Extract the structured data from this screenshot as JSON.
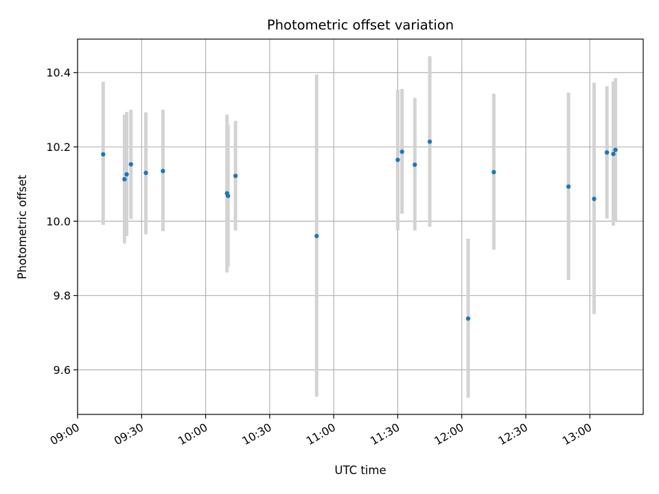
{
  "chart_data": {
    "type": "scatter",
    "title": "Photometric offset variation",
    "xlabel": "UTC time",
    "ylabel": "Photometric offset",
    "x_ticks": [
      "09:00",
      "09:30",
      "10:00",
      "10:30",
      "11:00",
      "11:30",
      "12:00",
      "12:30",
      "13:00"
    ],
    "y_ticks": [
      "9.6",
      "9.8",
      "10.0",
      "10.2",
      "10.4"
    ],
    "xlim": [
      "09:00",
      "13:25"
    ],
    "ylim": [
      9.48,
      10.49
    ],
    "grid": true,
    "colors": {
      "point": "#1f77b4",
      "errorbar": "#d3d3d3",
      "grid": "#b0b0b0"
    },
    "points": [
      {
        "time": "09:12",
        "value": 10.18,
        "err_low": 9.99,
        "err_high": 10.375
      },
      {
        "time": "09:22",
        "value": 10.113,
        "err_low": 9.94,
        "err_high": 10.287
      },
      {
        "time": "09:23",
        "value": 10.126,
        "err_low": 9.96,
        "err_high": 10.294
      },
      {
        "time": "09:25",
        "value": 10.153,
        "err_low": 10.005,
        "err_high": 10.3
      },
      {
        "time": "09:32",
        "value": 10.13,
        "err_low": 9.965,
        "err_high": 10.293
      },
      {
        "time": "09:40",
        "value": 10.135,
        "err_low": 9.973,
        "err_high": 10.3
      },
      {
        "time": "10:10",
        "value": 10.075,
        "err_low": 9.862,
        "err_high": 10.287
      },
      {
        "time": "10:10:30",
        "value": 10.068,
        "err_low": 9.878,
        "err_high": 10.26
      },
      {
        "time": "10:14",
        "value": 10.122,
        "err_low": 9.975,
        "err_high": 10.27
      },
      {
        "time": "10:52",
        "value": 9.96,
        "err_low": 9.528,
        "err_high": 10.395
      },
      {
        "time": "11:30",
        "value": 10.165,
        "err_low": 9.975,
        "err_high": 10.354
      },
      {
        "time": "11:32",
        "value": 10.187,
        "err_low": 10.02,
        "err_high": 10.356
      },
      {
        "time": "11:38",
        "value": 10.152,
        "err_low": 9.975,
        "err_high": 10.332
      },
      {
        "time": "11:45",
        "value": 10.214,
        "err_low": 9.985,
        "err_high": 10.444
      },
      {
        "time": "12:03",
        "value": 9.738,
        "err_low": 9.525,
        "err_high": 9.953
      },
      {
        "time": "12:15",
        "value": 10.132,
        "err_low": 9.923,
        "err_high": 10.343
      },
      {
        "time": "12:50",
        "value": 10.093,
        "err_low": 9.842,
        "err_high": 10.346
      },
      {
        "time": "13:02",
        "value": 10.06,
        "err_low": 9.75,
        "err_high": 10.373
      },
      {
        "time": "13:08",
        "value": 10.185,
        "err_low": 10.007,
        "err_high": 10.363
      },
      {
        "time": "13:11",
        "value": 10.181,
        "err_low": 9.988,
        "err_high": 10.376
      },
      {
        "time": "13:12",
        "value": 10.192,
        "err_low": 10.0,
        "err_high": 10.385
      }
    ]
  }
}
